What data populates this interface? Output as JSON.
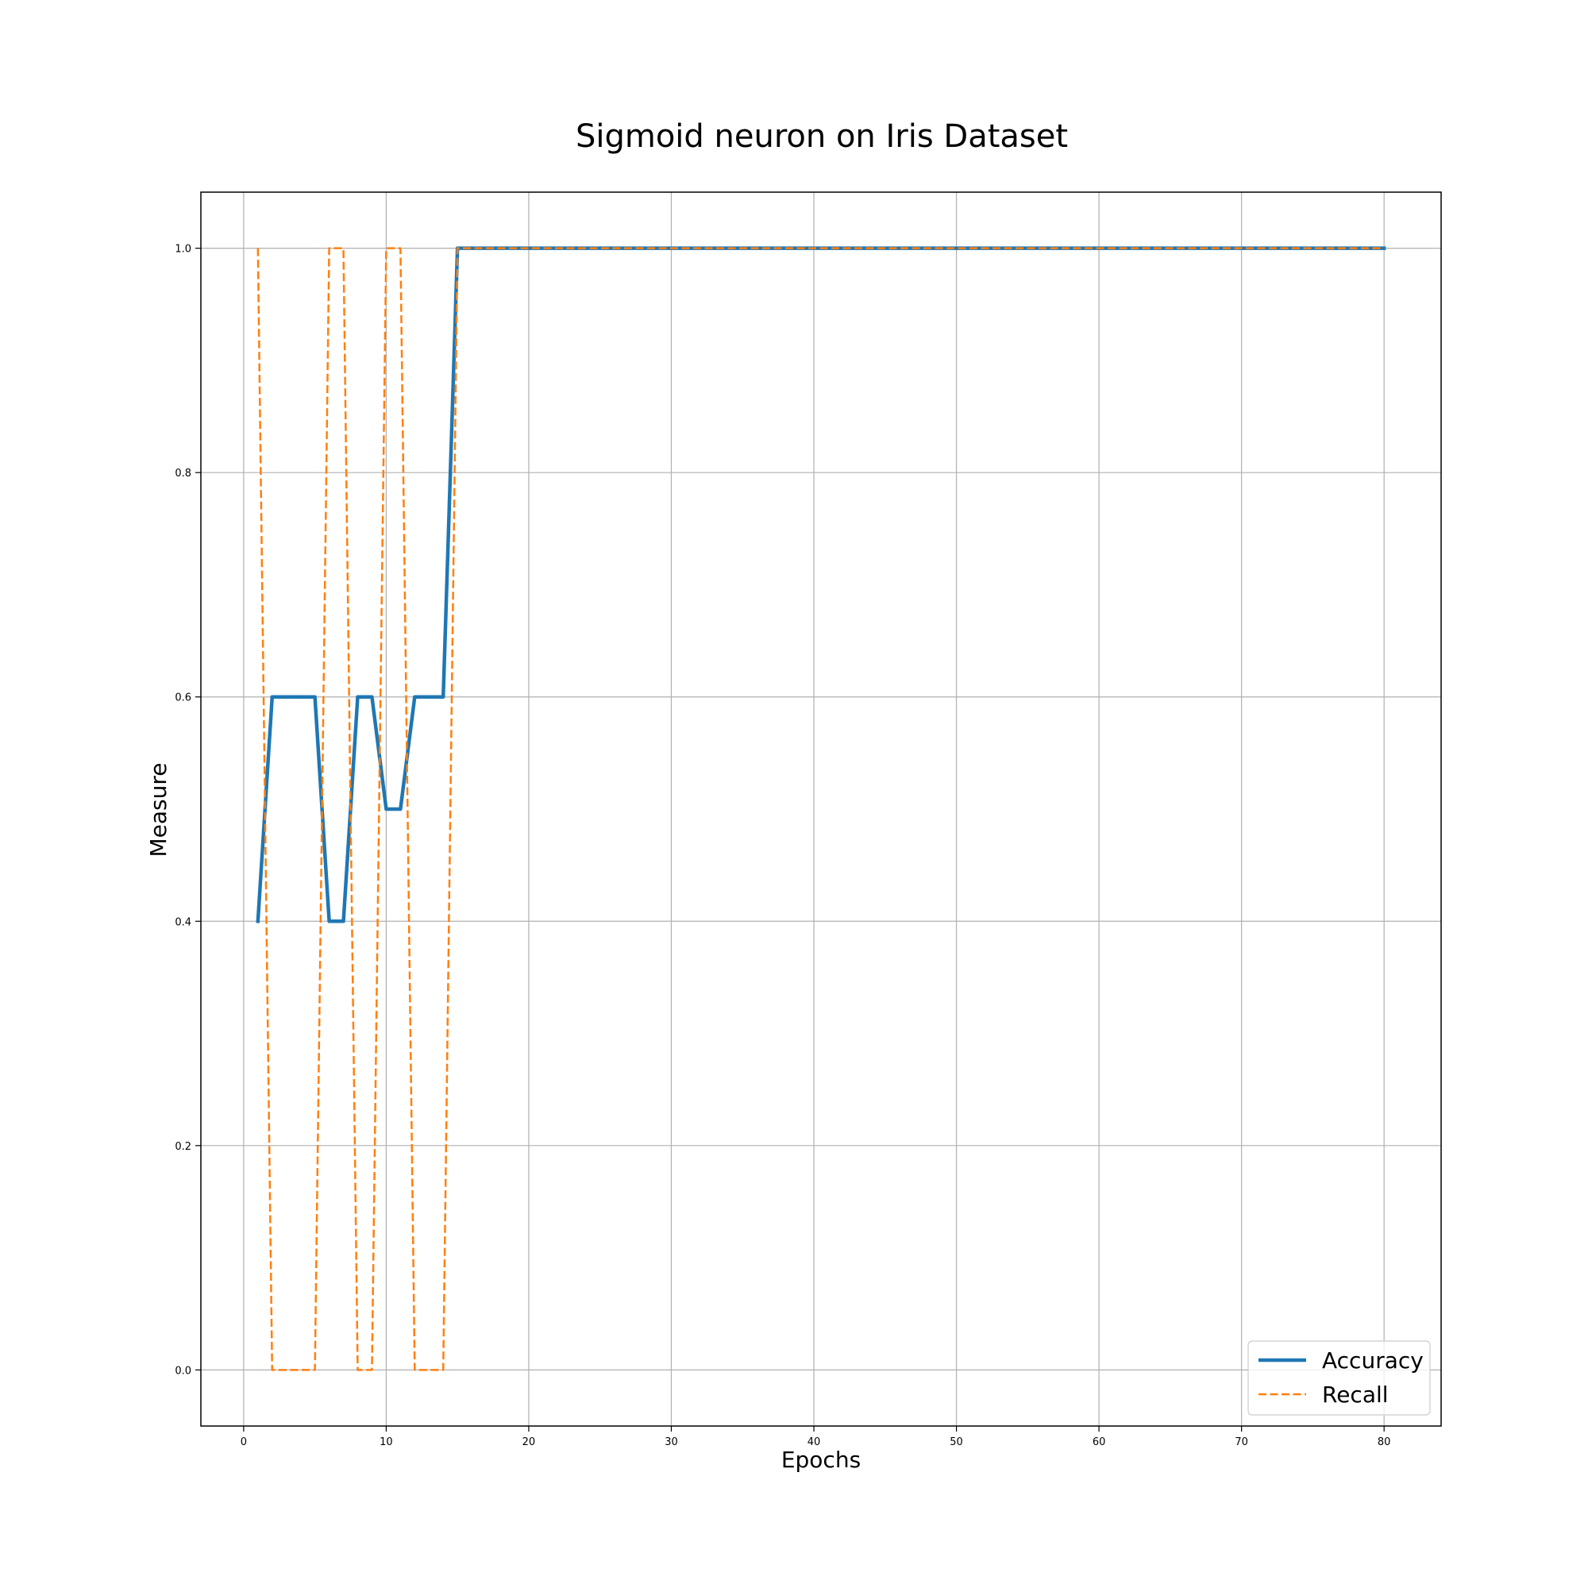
{
  "chart_data": {
    "type": "line",
    "title": "Sigmoid neuron on Iris Dataset",
    "xlabel": "Epochs",
    "ylabel": "Measure",
    "xlim": [
      -3,
      84
    ],
    "ylim": [
      -0.05,
      1.05
    ],
    "xticks": [
      0,
      10,
      20,
      30,
      40,
      50,
      60,
      70,
      80
    ],
    "xtick_labels": [
      "0",
      "10",
      "20",
      "30",
      "40",
      "50",
      "60",
      "70",
      "80"
    ],
    "yticks": [
      0.0,
      0.2,
      0.4,
      0.6,
      0.8,
      1.0
    ],
    "ytick_labels": [
      "0.0",
      "0.2",
      "0.4",
      "0.6",
      "0.8",
      "1.0"
    ],
    "grid": true,
    "legend_position": "lower-right",
    "x": [
      1,
      2,
      3,
      4,
      5,
      6,
      7,
      8,
      9,
      10,
      11,
      12,
      13,
      14,
      15,
      16,
      17,
      18,
      19,
      20,
      21,
      22,
      23,
      24,
      25,
      26,
      27,
      28,
      29,
      30,
      31,
      32,
      33,
      34,
      35,
      36,
      37,
      38,
      39,
      40,
      41,
      42,
      43,
      44,
      45,
      46,
      47,
      48,
      49,
      50,
      51,
      52,
      53,
      54,
      55,
      56,
      57,
      58,
      59,
      60,
      61,
      62,
      63,
      64,
      65,
      66,
      67,
      68,
      69,
      70,
      71,
      72,
      73,
      74,
      75,
      76,
      77,
      78,
      79,
      80
    ],
    "series": [
      {
        "name": "Accuracy",
        "color": "#1f77b4",
        "style": "solid",
        "values": [
          0.4,
          0.6,
          0.6,
          0.6,
          0.6,
          0.4,
          0.4,
          0.6,
          0.6,
          0.5,
          0.5,
          0.6,
          0.6,
          0.6,
          1.0,
          1.0,
          1.0,
          1.0,
          1.0,
          1.0,
          1.0,
          1.0,
          1.0,
          1.0,
          1.0,
          1.0,
          1.0,
          1.0,
          1.0,
          1.0,
          1.0,
          1.0,
          1.0,
          1.0,
          1.0,
          1.0,
          1.0,
          1.0,
          1.0,
          1.0,
          1.0,
          1.0,
          1.0,
          1.0,
          1.0,
          1.0,
          1.0,
          1.0,
          1.0,
          1.0,
          1.0,
          1.0,
          1.0,
          1.0,
          1.0,
          1.0,
          1.0,
          1.0,
          1.0,
          1.0,
          1.0,
          1.0,
          1.0,
          1.0,
          1.0,
          1.0,
          1.0,
          1.0,
          1.0,
          1.0,
          1.0,
          1.0,
          1.0,
          1.0,
          1.0,
          1.0,
          1.0,
          1.0,
          1.0,
          1.0
        ]
      },
      {
        "name": "Recall",
        "color": "#ff7f0e",
        "style": "dashed",
        "values": [
          1.0,
          0.0,
          0.0,
          0.0,
          0.0,
          1.0,
          1.0,
          0.0,
          0.0,
          1.0,
          1.0,
          0.0,
          0.0,
          0.0,
          1.0,
          1.0,
          1.0,
          1.0,
          1.0,
          1.0,
          1.0,
          1.0,
          1.0,
          1.0,
          1.0,
          1.0,
          1.0,
          1.0,
          1.0,
          1.0,
          1.0,
          1.0,
          1.0,
          1.0,
          1.0,
          1.0,
          1.0,
          1.0,
          1.0,
          1.0,
          1.0,
          1.0,
          1.0,
          1.0,
          1.0,
          1.0,
          1.0,
          1.0,
          1.0,
          1.0,
          1.0,
          1.0,
          1.0,
          1.0,
          1.0,
          1.0,
          1.0,
          1.0,
          1.0,
          1.0,
          1.0,
          1.0,
          1.0,
          1.0,
          1.0,
          1.0,
          1.0,
          1.0,
          1.0,
          1.0,
          1.0,
          1.0,
          1.0,
          1.0,
          1.0,
          1.0,
          1.0,
          1.0,
          1.0,
          1.0
        ]
      }
    ]
  }
}
